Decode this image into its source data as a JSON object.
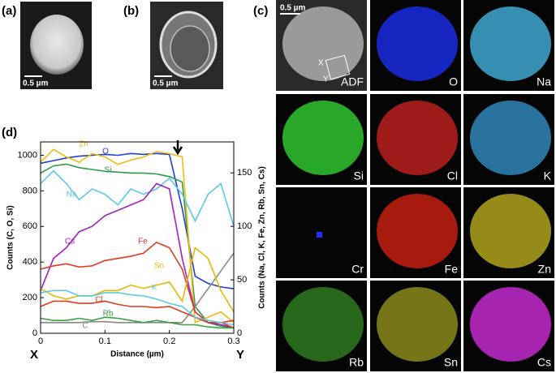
{
  "panels": {
    "a": {
      "label": "(a)",
      "scale": "0.5 µm"
    },
    "b": {
      "label": "(b)",
      "scale": "0.5 µm"
    },
    "c": {
      "label": "(c)",
      "scale": "0.5 µm",
      "markers": [
        "X",
        "Y"
      ],
      "maps": [
        {
          "label": "ADF",
          "color": "#9a9a9a"
        },
        {
          "label": "O",
          "color": "#1a2be0"
        },
        {
          "label": "Na",
          "color": "#3fa7d0"
        },
        {
          "label": "Si",
          "color": "#2fc42f"
        },
        {
          "label": "Cl",
          "color": "#b8201c"
        },
        {
          "label": "K",
          "color": "#2f86b8"
        },
        {
          "label": "Cr",
          "color": "#0a0a20"
        },
        {
          "label": "Fe",
          "color": "#c41e10"
        },
        {
          "label": "Zn",
          "color": "#b0a21c"
        },
        {
          "label": "Rb",
          "color": "#2f7a20"
        },
        {
          "label": "Sn",
          "color": "#8a8a1c"
        },
        {
          "label": "Cs",
          "color": "#c42ad0"
        }
      ]
    },
    "d": {
      "label": "(d)",
      "start": "X",
      "end": "Y"
    }
  },
  "chart_data": {
    "type": "line",
    "xlabel": "Distance (µm)",
    "ylabel": "Counts (C, O, Si)",
    "y2label": "Counts (Na, Cl, K, Fe, Zn, Rb, Sn, Cs)",
    "x": [
      0,
      0.02,
      0.04,
      0.06,
      0.08,
      0.1,
      0.12,
      0.14,
      0.16,
      0.18,
      0.2,
      0.22,
      0.24,
      0.26,
      0.28,
      0.3
    ],
    "xlim": [
      0,
      0.3
    ],
    "xticks": [
      0,
      0.1,
      0.2,
      0.3
    ],
    "ylim": [
      0,
      1075
    ],
    "yticks": [
      0,
      200,
      400,
      600,
      800,
      1000
    ],
    "y2lim": [
      0,
      179
    ],
    "y2ticks": [
      0,
      50,
      100,
      150
    ],
    "series": [
      {
        "name": "O",
        "color": "#1f3fd0",
        "values": [
          955,
          970,
          985,
          995,
          1000,
          1005,
          1000,
          1010,
          1005,
          1010,
          1005,
          700,
          320,
          280,
          260,
          250
        ]
      },
      {
        "name": "Si",
        "color": "#2e9a4a",
        "values": [
          900,
          940,
          950,
          930,
          920,
          910,
          905,
          900,
          900,
          895,
          880,
          850,
          150,
          60,
          40,
          30
        ]
      },
      {
        "name": "C",
        "color": "#888888",
        "values": [
          60,
          60,
          60,
          60,
          65,
          65,
          60,
          60,
          60,
          60,
          60,
          60,
          150,
          250,
          350,
          450
        ]
      },
      {
        "name": "Zn",
        "color": "#f2b90f",
        "axis": "y2",
        "values": [
          160,
          172,
          165,
          160,
          168,
          165,
          158,
          162,
          165,
          170,
          168,
          165,
          10,
          15,
          20,
          10
        ]
      },
      {
        "name": "Na",
        "color": "#5bc8e8",
        "axis": "y2",
        "values": [
          140,
          152,
          140,
          125,
          135,
          130,
          120,
          135,
          130,
          135,
          145,
          130,
          105,
          130,
          140,
          100
        ]
      },
      {
        "name": "Cs",
        "color": "#a020c0",
        "axis": "y2",
        "values": [
          40,
          70,
          80,
          95,
          100,
          110,
          115,
          120,
          125,
          140,
          135,
          70,
          20,
          10,
          8,
          5
        ]
      },
      {
        "name": "Fe",
        "color": "#e03a1e",
        "axis": "y2",
        "values": [
          60,
          63,
          65,
          62,
          63,
          68,
          70,
          72,
          75,
          85,
          80,
          60,
          20,
          10,
          10,
          5
        ]
      },
      {
        "name": "Sn",
        "color": "#e6b800",
        "axis": "y2",
        "values": [
          42,
          35,
          32,
          35,
          35,
          40,
          40,
          45,
          42,
          45,
          48,
          30,
          80,
          70,
          40,
          20
        ]
      },
      {
        "name": "Cl",
        "color": "#e03a1e",
        "axis": "y2",
        "values": [
          25,
          30,
          30,
          28,
          28,
          30,
          27,
          25,
          25,
          24,
          25,
          20,
          15,
          10,
          10,
          12
        ]
      },
      {
        "name": "K",
        "color": "#5bc8e8",
        "axis": "y2",
        "values": [
          38,
          40,
          40,
          35,
          35,
          38,
          38,
          36,
          35,
          32,
          28,
          25,
          15,
          12,
          10,
          8
        ]
      },
      {
        "name": "Rb",
        "color": "#3aa040",
        "axis": "y2",
        "values": [
          14,
          12,
          12,
          14,
          12,
          15,
          14,
          12,
          10,
          12,
          10,
          8,
          8,
          6,
          5,
          5
        ]
      }
    ]
  }
}
